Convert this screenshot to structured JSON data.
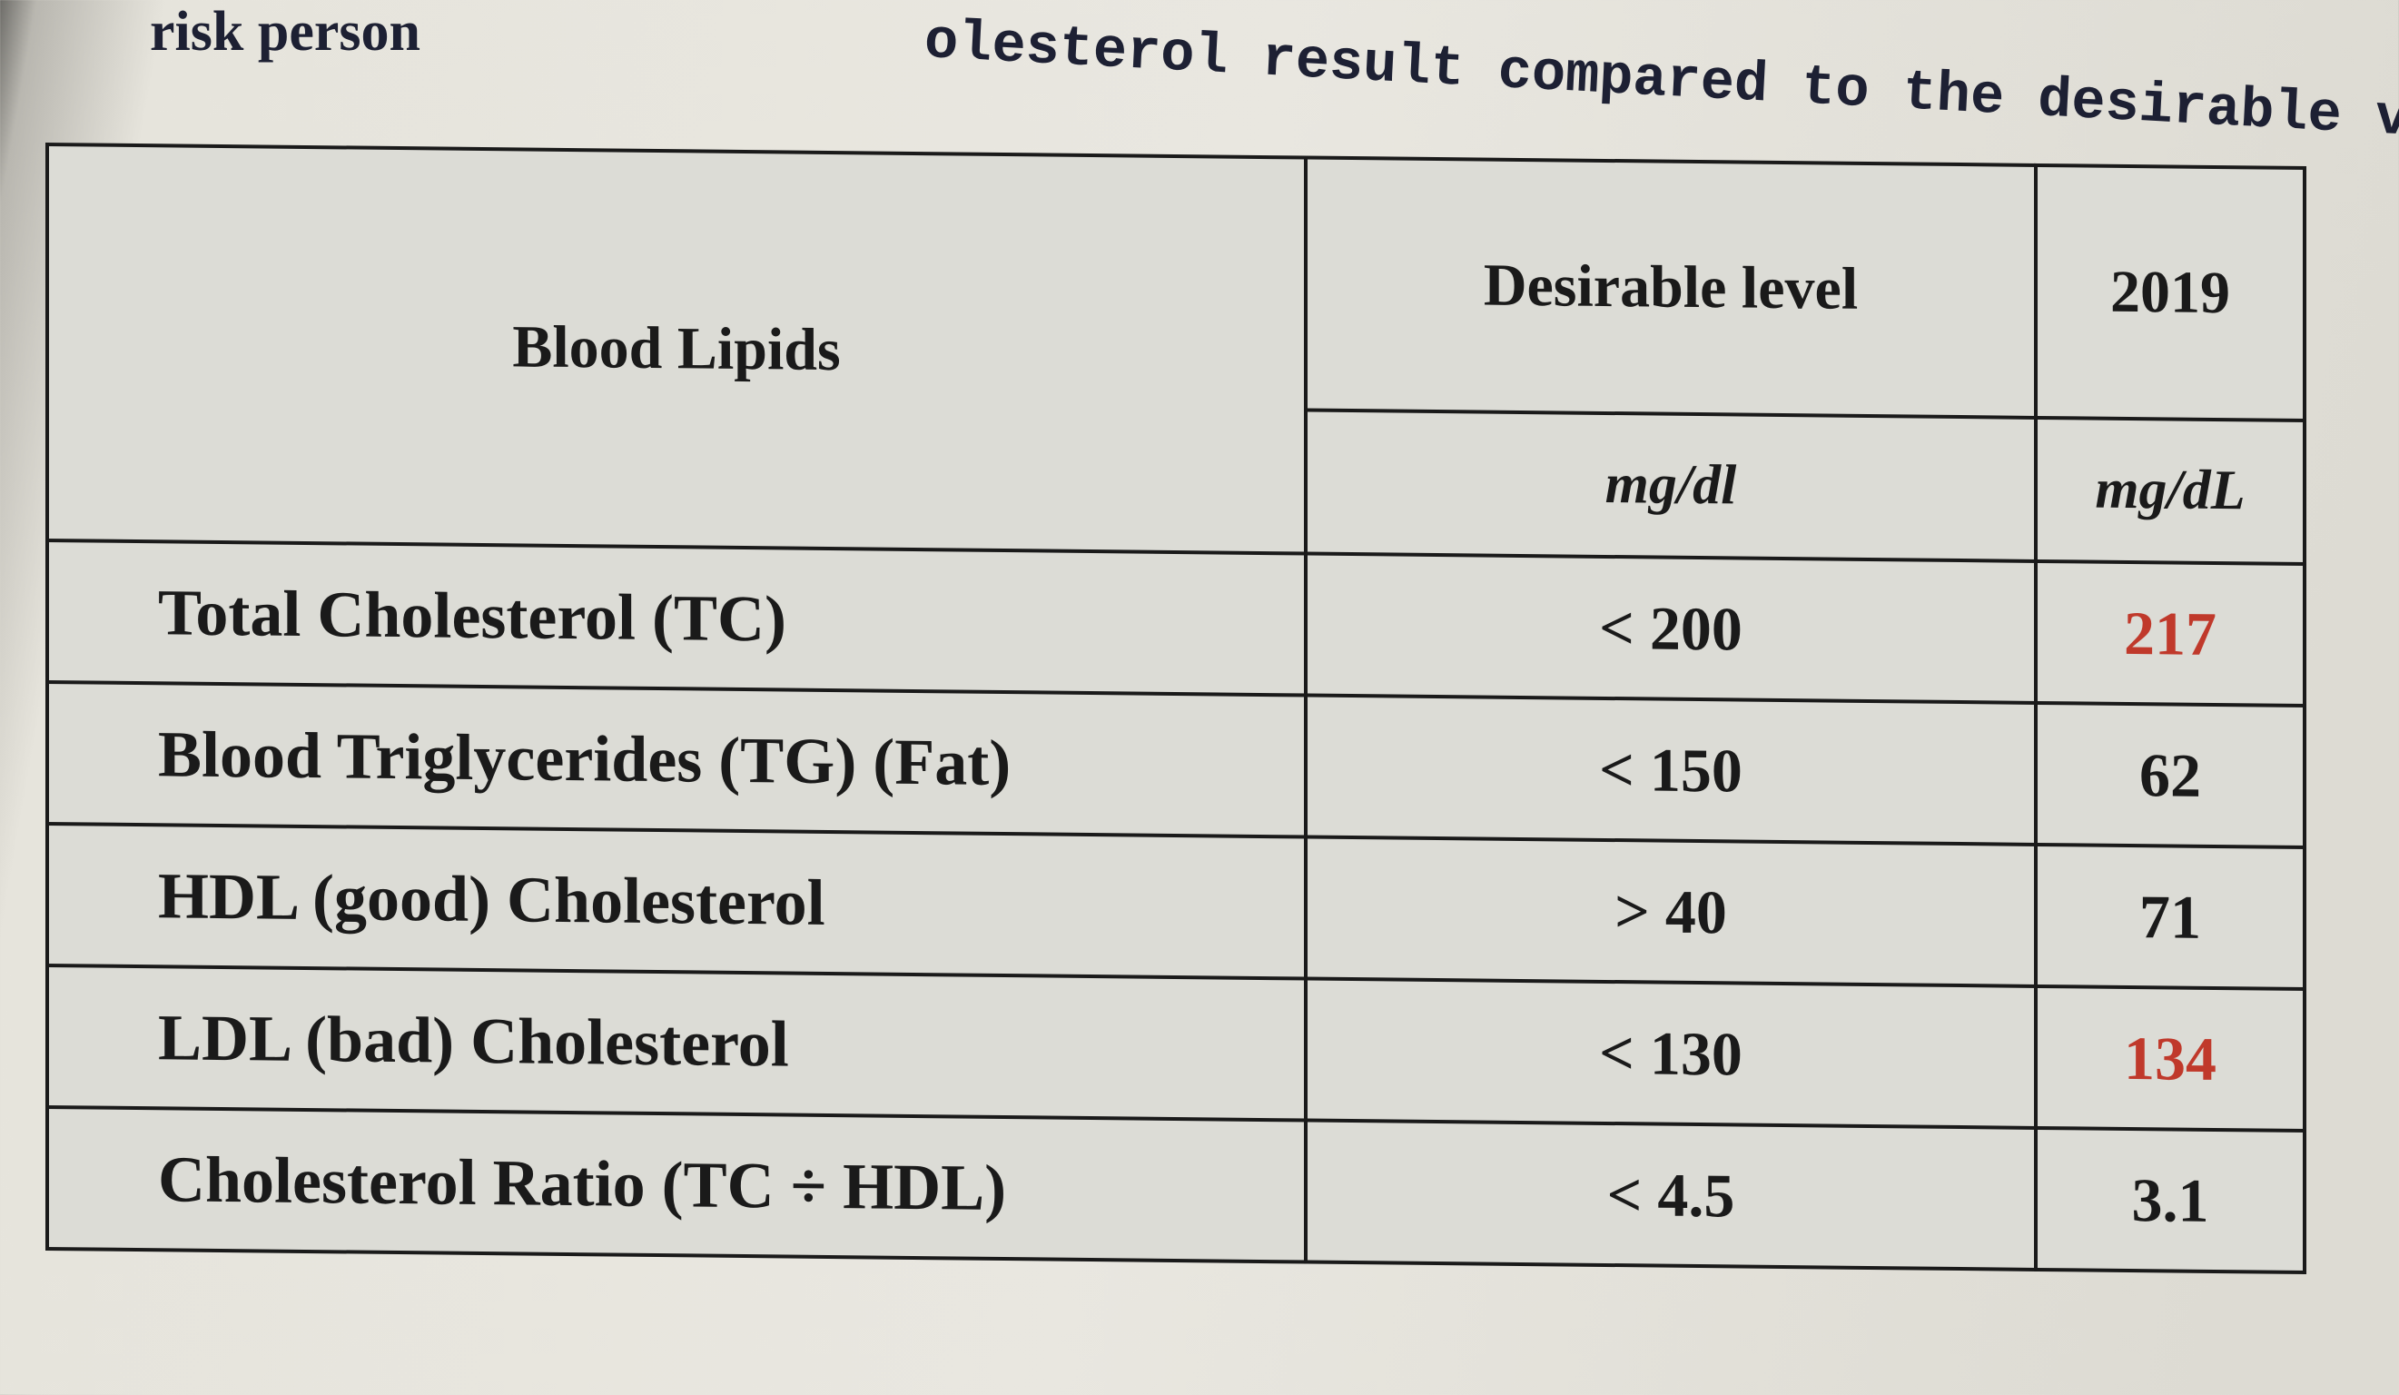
{
  "header": {
    "left_text": "risk person",
    "right_text": "olesterol result compared to the desirable value fo"
  },
  "table": {
    "columns": [
      "Blood Lipids",
      "Desirable level",
      "2019"
    ],
    "units": [
      "mg/dl",
      "mg/dL"
    ],
    "rows": [
      {
        "lipid": "Total Cholesterol (TC)",
        "desirable": "< 200",
        "result": "217",
        "result_color": "#c0392b"
      },
      {
        "lipid": "Blood Triglycerides (TG) (Fat)",
        "desirable": "< 150",
        "result": "62",
        "result_color": "#1a1a1a"
      },
      {
        "lipid": "HDL (good) Cholesterol",
        "desirable": "> 40",
        "result": "71",
        "result_color": "#1a1a1a"
      },
      {
        "lipid": "LDL (bad) Cholesterol",
        "desirable": "< 130",
        "result": "134",
        "result_color": "#c0392b"
      },
      {
        "lipid": "Cholesterol Ratio (TC ÷ HDL)",
        "desirable": "< 4.5",
        "result": "3.1",
        "result_color": "#1a1a1a"
      }
    ]
  }
}
